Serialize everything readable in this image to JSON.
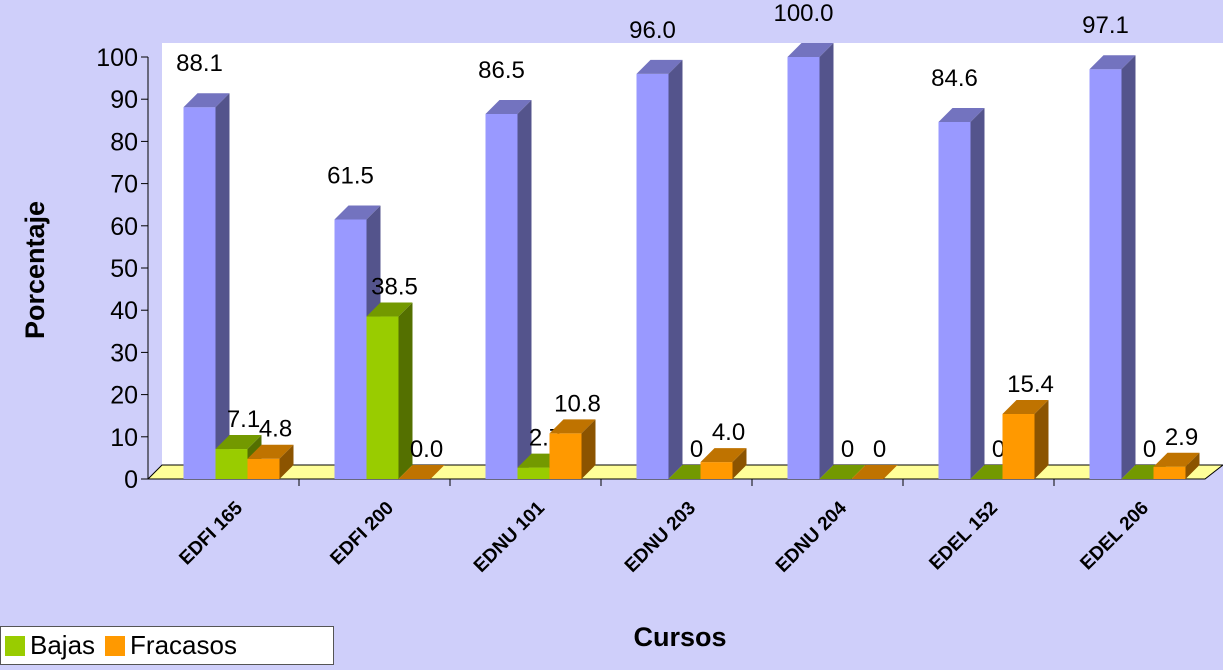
{
  "chart_data": {
    "type": "bar",
    "title": "",
    "xlabel": "Cursos",
    "ylabel": "Porcentaje",
    "ylim": [
      0,
      100
    ],
    "yticks": [
      0,
      10,
      20,
      30,
      40,
      50,
      60,
      70,
      80,
      90,
      100
    ],
    "categories": [
      "EDFI 165",
      "EDFI 200",
      "EDNU 101",
      "EDNU 203",
      "EDNU 204",
      "EDEL 152",
      "EDEL 206"
    ],
    "series": [
      {
        "name": "",
        "color": "#9999ff",
        "values": [
          88.1,
          61.5,
          86.5,
          96.0,
          100.0,
          84.6,
          97.1
        ],
        "labels": [
          "88.1",
          "61.5",
          "86.5",
          "96.0",
          "100.0",
          "84.6",
          "97.1"
        ]
      },
      {
        "name": "Bajas",
        "color": "#99cc00",
        "values": [
          7.1,
          38.5,
          2.7,
          0,
          0,
          0,
          0
        ],
        "labels": [
          "7.1",
          "38.5",
          "2.7",
          "0",
          "0",
          "0",
          "0"
        ]
      },
      {
        "name": "Fracasos",
        "color": "#ff9900",
        "values": [
          4.8,
          0.0,
          10.8,
          4.0,
          0,
          15.4,
          2.9
        ],
        "labels": [
          "4.8",
          "0.0",
          "10.8",
          "4.0",
          "0",
          "15.4",
          "2.9"
        ]
      }
    ],
    "grid": false,
    "legend_position": "bottom-left",
    "three_d": true,
    "colors": {
      "wall": "#ffffff",
      "floor": "#ffff99",
      "background": "#cfcffa"
    }
  }
}
